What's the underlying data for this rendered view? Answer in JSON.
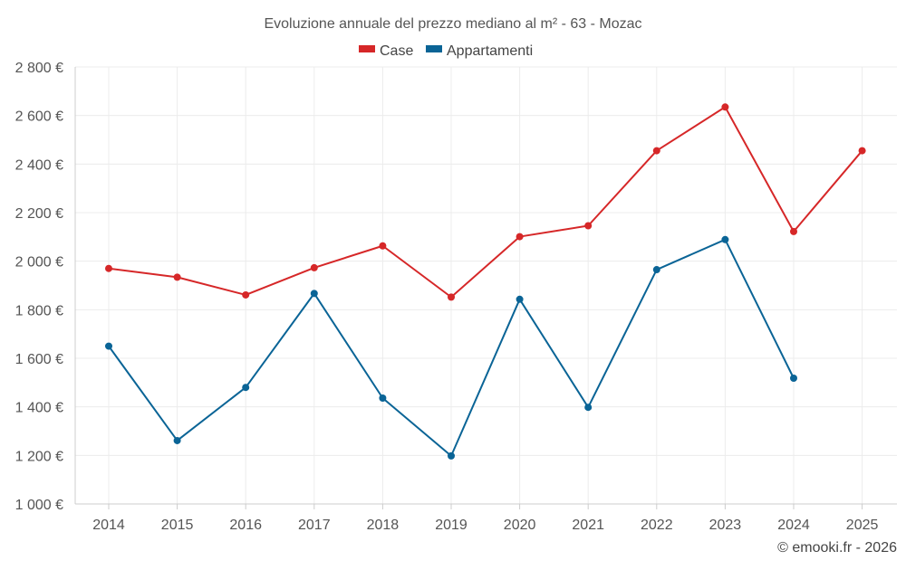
{
  "chart_data": {
    "type": "line",
    "title": "Evoluzione annuale del prezzo mediano al m² - 63 - Mozac",
    "categories": [
      "2014",
      "2015",
      "2016",
      "2017",
      "2018",
      "2019",
      "2020",
      "2021",
      "2022",
      "2023",
      "2024",
      "2025"
    ],
    "series": [
      {
        "name": "Case",
        "color": "#d62728",
        "values": [
          1970,
          1934,
          1861,
          1973,
          2063,
          1852,
          2101,
          2146,
          2455,
          2635,
          2122,
          2455
        ]
      },
      {
        "name": "Appartamenti",
        "color": "#0a6496",
        "values": [
          1650,
          1261,
          1480,
          1867,
          1436,
          1198,
          1843,
          1398,
          1965,
          2089,
          1518,
          null
        ]
      }
    ],
    "yticks": [
      "1 000 €",
      "1 200 €",
      "1 400 €",
      "1 600 €",
      "1 800 €",
      "2 000 €",
      "2 200 €",
      "2 400 €",
      "2 600 €",
      "2 800 €"
    ],
    "ylim": [
      1000,
      2800
    ],
    "xlabel": "",
    "ylabel": "",
    "grid": true,
    "legend": "top-center"
  },
  "credit": "© emooki.fr - 2026"
}
